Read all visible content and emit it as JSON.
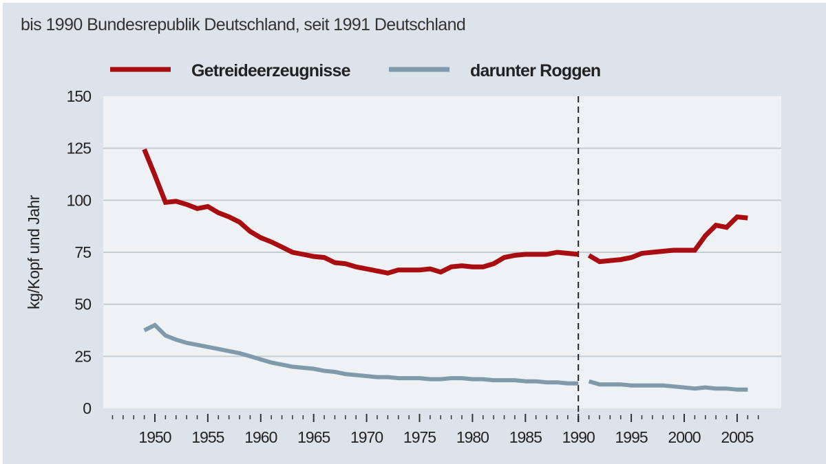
{
  "chart_data": {
    "type": "line",
    "subtitle": "bis 1990 Bundesrepublik Deutschland, seit 1991 Deutschland",
    "ylabel": "kg/Kopf und Jahr",
    "xlabel": "",
    "ylim": [
      0,
      150
    ],
    "xlim": [
      1946,
      2007
    ],
    "yticks": [
      "0",
      "25",
      "50",
      "75",
      "100",
      "125",
      "150"
    ],
    "xticks": [
      "1950",
      "1955",
      "1960",
      "1965",
      "1970",
      "1975",
      "1980",
      "1985",
      "1990",
      "1995",
      "2000",
      "2005"
    ],
    "grid": "horizontal",
    "legend_position": "top",
    "break_marker_year": 1990,
    "series": [
      {
        "name": "Getreideerzeugnisse",
        "color": "#a80d12",
        "segments": [
          {
            "x": [
              1949,
              1950,
              1951,
              1952,
              1953,
              1954,
              1955,
              1956,
              1957,
              1958,
              1959,
              1960,
              1961,
              1962,
              1963,
              1964,
              1965,
              1966,
              1967,
              1968,
              1969,
              1970,
              1971,
              1972,
              1973,
              1974,
              1975,
              1976,
              1977,
              1978,
              1979,
              1980,
              1981,
              1982,
              1983,
              1984,
              1985,
              1986,
              1987,
              1988,
              1989,
              1990
            ],
            "y": [
              124.5,
              112,
              99,
              99.5,
              98,
              96,
              97,
              94,
              92,
              89.5,
              85,
              82,
              80,
              77.5,
              75,
              74,
              73,
              72.5,
              70,
              69.5,
              68,
              67,
              66,
              65,
              66.5,
              66.5,
              66.5,
              67,
              65.5,
              68,
              68.5,
              68,
              68,
              69.5,
              72.5,
              73.5,
              74,
              74,
              74,
              75,
              74.5,
              74
            ]
          },
          {
            "x": [
              1991,
              1992,
              1993,
              1994,
              1995,
              1996,
              1997,
              1998,
              1999,
              2000,
              2001,
              2002,
              2003,
              2004,
              2005,
              2006
            ],
            "y": [
              73.5,
              70.5,
              71,
              71.5,
              72.5,
              74.5,
              75,
              75.5,
              76,
              76,
              76,
              83,
              88,
              87,
              92,
              91.5
            ]
          }
        ]
      },
      {
        "name": "darunter Roggen",
        "color": "#7f9aab",
        "segments": [
          {
            "x": [
              1949,
              1950,
              1951,
              1952,
              1953,
              1954,
              1955,
              1956,
              1957,
              1958,
              1959,
              1960,
              1961,
              1962,
              1963,
              1964,
              1965,
              1966,
              1967,
              1968,
              1969,
              1970,
              1971,
              1972,
              1973,
              1974,
              1975,
              1976,
              1977,
              1978,
              1979,
              1980,
              1981,
              1982,
              1983,
              1984,
              1985,
              1986,
              1987,
              1988,
              1989,
              1990
            ],
            "y": [
              37.5,
              40,
              35,
              33,
              31.5,
              30.5,
              29.5,
              28.5,
              27.5,
              26.5,
              25,
              23.5,
              22,
              21,
              20,
              19.5,
              19,
              18,
              17.5,
              16.5,
              16,
              15.5,
              15,
              15,
              14.5,
              14.5,
              14.5,
              14,
              14,
              14.5,
              14.5,
              14,
              14,
              13.5,
              13.5,
              13.5,
              13,
              13,
              12.5,
              12.5,
              12,
              12
            ]
          },
          {
            "x": [
              1991,
              1992,
              1993,
              1994,
              1995,
              1996,
              1997,
              1998,
              1999,
              2000,
              2001,
              2002,
              2003,
              2004,
              2005,
              2006
            ],
            "y": [
              13,
              11.5,
              11.5,
              11.5,
              11,
              11,
              11,
              11,
              10.5,
              10,
              9.5,
              10,
              9.5,
              9.5,
              9,
              9
            ]
          }
        ]
      }
    ]
  }
}
